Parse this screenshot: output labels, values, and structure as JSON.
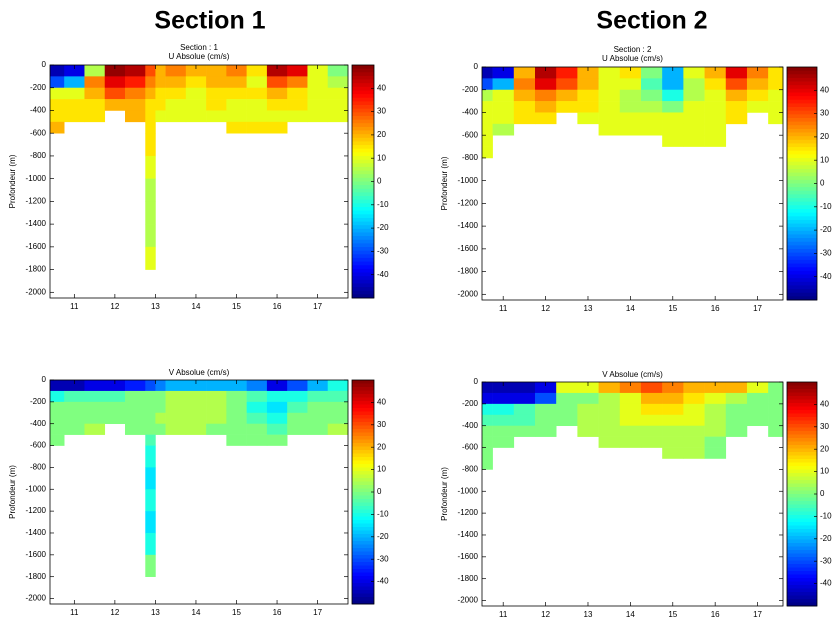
{
  "headings": [
    "Section 1",
    "Section 2"
  ],
  "chart_data": [
    {
      "type": "heatmap",
      "title": "Section : 1",
      "subtitle": "U Absolue (cm/s)",
      "ylabel": "Profondeur (m)",
      "colormap": "jet",
      "xlim": [
        10.4,
        17.75
      ],
      "ylim": [
        -2050,
        0
      ],
      "xticks": [
        11,
        12,
        13,
        14,
        15,
        16,
        17
      ],
      "yticks": [
        0,
        -200,
        -400,
        -600,
        -800,
        -1000,
        -1200,
        -1400,
        -1600,
        -1800,
        -2000
      ],
      "clim": [
        -50,
        50
      ],
      "cticks": [
        40,
        30,
        20,
        10,
        0,
        -10,
        -20,
        -30,
        -40
      ],
      "x_edges": [
        10.4,
        10.75,
        11.25,
        11.75,
        12.25,
        12.75,
        13.0,
        13.25,
        13.75,
        14.25,
        14.75,
        15.25,
        15.75,
        16.25,
        16.75,
        17.25,
        17.75
      ],
      "y_edges": [
        0,
        -100,
        -200,
        -300,
        -400,
        -500,
        -600,
        -800,
        -1000,
        -1200,
        -1400,
        -1600,
        -1800
      ],
      "values": [
        [
          -45,
          -40,
          5,
          48,
          45,
          30,
          20,
          25,
          20,
          20,
          25,
          15,
          45,
          40,
          10,
          0
        ],
        [
          -30,
          -20,
          25,
          40,
          35,
          25,
          20,
          20,
          15,
          20,
          20,
          10,
          30,
          25,
          10,
          5
        ],
        [
          10,
          10,
          20,
          30,
          25,
          20,
          15,
          15,
          10,
          15,
          15,
          15,
          20,
          15,
          10,
          10
        ],
        [
          15,
          15,
          15,
          20,
          20,
          15,
          15,
          10,
          10,
          15,
          10,
          10,
          15,
          15,
          10,
          10
        ],
        [
          15,
          15,
          15,
          null,
          20,
          15,
          10,
          10,
          10,
          10,
          10,
          10,
          10,
          10,
          10,
          10
        ],
        [
          20,
          null,
          null,
          null,
          null,
          15,
          null,
          null,
          null,
          null,
          15,
          15,
          15,
          null,
          null,
          null
        ],
        [
          null,
          null,
          null,
          null,
          null,
          15,
          null,
          null,
          null,
          null,
          null,
          null,
          null,
          null,
          null,
          null
        ],
        [
          null,
          null,
          null,
          null,
          null,
          10,
          null,
          null,
          null,
          null,
          null,
          null,
          null,
          null,
          null,
          null
        ],
        [
          null,
          null,
          null,
          null,
          null,
          5,
          null,
          null,
          null,
          null,
          null,
          null,
          null,
          null,
          null,
          null
        ],
        [
          null,
          null,
          null,
          null,
          null,
          5,
          null,
          null,
          null,
          null,
          null,
          null,
          null,
          null,
          null,
          null
        ],
        [
          null,
          null,
          null,
          null,
          null,
          5,
          null,
          null,
          null,
          null,
          null,
          null,
          null,
          null,
          null,
          null
        ],
        [
          null,
          null,
          null,
          null,
          null,
          10,
          null,
          null,
          null,
          null,
          null,
          null,
          null,
          null,
          null,
          null
        ]
      ]
    },
    {
      "type": "heatmap",
      "title": "Section : 2",
      "subtitle": "U Absolue (cm/s)",
      "ylabel": "Profondeur (m)",
      "colormap": "jet",
      "xlim": [
        10.5,
        17.6
      ],
      "ylim": [
        -2050,
        0
      ],
      "xticks": [
        11,
        12,
        13,
        14,
        15,
        16,
        17
      ],
      "yticks": [
        0,
        -200,
        -400,
        -600,
        -800,
        -1000,
        -1200,
        -1400,
        -1600,
        -1800,
        -2000
      ],
      "clim": [
        -50,
        50
      ],
      "cticks": [
        40,
        30,
        20,
        10,
        0,
        -10,
        -20,
        -30,
        -40
      ],
      "x_edges": [
        10.5,
        10.75,
        11.25,
        11.75,
        12.25,
        12.75,
        13.25,
        13.75,
        14.25,
        14.75,
        15.25,
        15.75,
        16.25,
        16.75,
        17.25,
        17.6
      ],
      "y_edges": [
        0,
        -100,
        -200,
        -300,
        -400,
        -500,
        -600,
        -700,
        -800
      ],
      "values": [
        [
          -45,
          -40,
          20,
          45,
          35,
          20,
          10,
          15,
          0,
          -20,
          10,
          20,
          40,
          25,
          15
        ],
        [
          -30,
          -20,
          25,
          40,
          30,
          20,
          10,
          10,
          -5,
          -20,
          5,
          15,
          30,
          20,
          15
        ],
        [
          5,
          10,
          20,
          25,
          20,
          15,
          10,
          5,
          0,
          -10,
          5,
          10,
          20,
          15,
          10
        ],
        [
          10,
          10,
          15,
          20,
          15,
          15,
          10,
          5,
          5,
          0,
          10,
          10,
          15,
          10,
          10
        ],
        [
          10,
          10,
          15,
          15,
          null,
          10,
          10,
          10,
          10,
          10,
          10,
          10,
          15,
          null,
          10
        ],
        [
          10,
          5,
          null,
          null,
          null,
          null,
          10,
          10,
          10,
          10,
          10,
          10,
          null,
          null,
          null
        ],
        [
          10,
          null,
          null,
          null,
          null,
          null,
          null,
          null,
          null,
          10,
          10,
          10,
          null,
          null,
          null
        ],
        [
          10,
          null,
          null,
          null,
          null,
          null,
          null,
          null,
          null,
          null,
          null,
          null,
          null,
          null,
          null
        ]
      ]
    },
    {
      "type": "heatmap",
      "title": "V Absolue (cm/s)",
      "ylabel": "Profondeur (m)",
      "colormap": "jet",
      "xlim": [
        10.4,
        17.75
      ],
      "ylim": [
        -2050,
        0
      ],
      "xticks": [
        11,
        12,
        13,
        14,
        15,
        16,
        17
      ],
      "yticks": [
        0,
        -200,
        -400,
        -600,
        -800,
        -1000,
        -1200,
        -1400,
        -1600,
        -1800,
        -2000
      ],
      "clim": [
        -50,
        50
      ],
      "cticks": [
        40,
        30,
        20,
        10,
        0,
        -10,
        -20,
        -30,
        -40
      ],
      "x_edges": [
        10.4,
        10.75,
        11.25,
        11.75,
        12.25,
        12.75,
        13.0,
        13.25,
        13.75,
        14.25,
        14.75,
        15.25,
        15.75,
        16.25,
        16.75,
        17.25,
        17.75
      ],
      "y_edges": [
        0,
        -100,
        -200,
        -300,
        -400,
        -500,
        -600,
        -800,
        -1000,
        -1200,
        -1400,
        -1600,
        -1800
      ],
      "values": [
        [
          -45,
          -45,
          -40,
          -40,
          -35,
          -30,
          -25,
          -20,
          -20,
          -20,
          -20,
          -25,
          -40,
          -30,
          -20,
          -10
        ],
        [
          -10,
          -5,
          -5,
          -5,
          0,
          0,
          0,
          5,
          5,
          5,
          0,
          -5,
          -10,
          -10,
          -5,
          -5
        ],
        [
          0,
          0,
          0,
          0,
          0,
          0,
          0,
          5,
          5,
          5,
          0,
          -10,
          -15,
          -5,
          0,
          0
        ],
        [
          0,
          0,
          0,
          0,
          0,
          0,
          5,
          5,
          5,
          5,
          0,
          -5,
          -10,
          0,
          0,
          0
        ],
        [
          0,
          0,
          5,
          null,
          0,
          0,
          0,
          5,
          5,
          0,
          0,
          0,
          -5,
          0,
          0,
          5
        ],
        [
          0,
          null,
          null,
          null,
          null,
          -5,
          null,
          null,
          null,
          null,
          0,
          0,
          0,
          null,
          null,
          null
        ],
        [
          null,
          null,
          null,
          null,
          null,
          -10,
          null,
          null,
          null,
          null,
          null,
          null,
          null,
          null,
          null,
          null
        ],
        [
          null,
          null,
          null,
          null,
          null,
          -15,
          null,
          null,
          null,
          null,
          null,
          null,
          null,
          null,
          null,
          null
        ],
        [
          null,
          null,
          null,
          null,
          null,
          -10,
          null,
          null,
          null,
          null,
          null,
          null,
          null,
          null,
          null,
          null
        ],
        [
          null,
          null,
          null,
          null,
          null,
          -15,
          null,
          null,
          null,
          null,
          null,
          null,
          null,
          null,
          null,
          null
        ],
        [
          null,
          null,
          null,
          null,
          null,
          -10,
          null,
          null,
          null,
          null,
          null,
          null,
          null,
          null,
          null,
          null
        ],
        [
          null,
          null,
          null,
          null,
          null,
          0,
          null,
          null,
          null,
          null,
          null,
          null,
          null,
          null,
          null,
          null
        ]
      ]
    },
    {
      "type": "heatmap",
      "title": "V Absolue (cm/s)",
      "ylabel": "Profondeur (m)",
      "colormap": "jet",
      "xlim": [
        10.5,
        17.6
      ],
      "ylim": [
        -2050,
        0
      ],
      "xticks": [
        11,
        12,
        13,
        14,
        15,
        16,
        17
      ],
      "yticks": [
        0,
        -200,
        -400,
        -600,
        -800,
        -1000,
        -1200,
        -1400,
        -1600,
        -1800,
        -2000
      ],
      "clim": [
        -50,
        50
      ],
      "cticks": [
        40,
        30,
        20,
        10,
        0,
        -10,
        -20,
        -30,
        -40
      ],
      "x_edges": [
        10.5,
        10.75,
        11.25,
        11.75,
        12.25,
        12.75,
        13.25,
        13.75,
        14.25,
        14.75,
        15.25,
        15.75,
        16.25,
        16.75,
        17.25,
        17.6
      ],
      "y_edges": [
        0,
        -100,
        -200,
        -300,
        -400,
        -500,
        -600,
        -700,
        -800
      ],
      "values": [
        [
          -45,
          -45,
          -45,
          -40,
          10,
          10,
          20,
          25,
          30,
          25,
          20,
          20,
          20,
          10,
          0
        ],
        [
          -40,
          -40,
          -40,
          -30,
          0,
          0,
          5,
          10,
          20,
          20,
          15,
          10,
          5,
          0,
          0
        ],
        [
          -10,
          -10,
          -5,
          0,
          0,
          5,
          5,
          10,
          15,
          15,
          10,
          5,
          0,
          0,
          0
        ],
        [
          -5,
          -5,
          -5,
          0,
          0,
          5,
          5,
          10,
          10,
          10,
          10,
          5,
          0,
          0,
          0
        ],
        [
          0,
          0,
          0,
          0,
          null,
          5,
          5,
          5,
          5,
          5,
          5,
          5,
          0,
          null,
          0
        ],
        [
          0,
          0,
          null,
          null,
          null,
          null,
          5,
          5,
          5,
          5,
          5,
          0,
          null,
          null,
          null
        ],
        [
          0,
          null,
          null,
          null,
          null,
          null,
          null,
          null,
          null,
          5,
          5,
          0,
          null,
          null,
          null
        ],
        [
          0,
          null,
          null,
          null,
          null,
          null,
          null,
          null,
          null,
          null,
          null,
          null,
          null,
          null,
          null
        ]
      ]
    }
  ]
}
